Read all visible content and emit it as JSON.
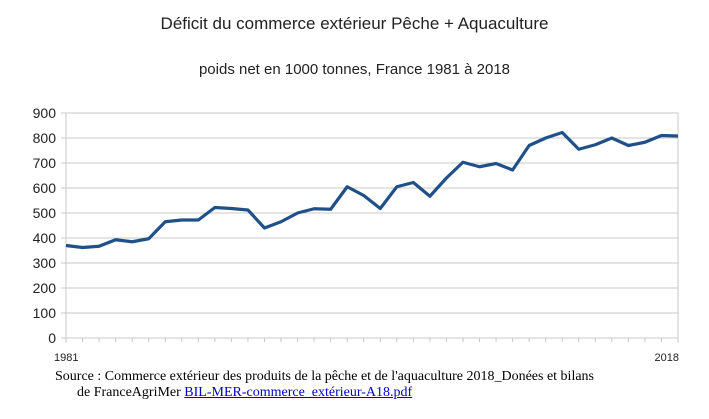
{
  "chart_data": {
    "type": "line",
    "title": "Déficit du commerce extérieur Pêche + Aquaculture",
    "subtitle": "poids net en 1000 tonnes, France 1981 à 2018",
    "x": [
      1981,
      1982,
      1983,
      1984,
      1985,
      1986,
      1987,
      1988,
      1989,
      1990,
      1991,
      1992,
      1993,
      1994,
      1995,
      1996,
      1997,
      1998,
      1999,
      2000,
      2001,
      2002,
      2003,
      2004,
      2005,
      2006,
      2007,
      2008,
      2009,
      2010,
      2011,
      2012,
      2013,
      2014,
      2015,
      2016,
      2017,
      2018
    ],
    "values": [
      370,
      362,
      367,
      393,
      385,
      397,
      465,
      472,
      472,
      522,
      518,
      512,
      440,
      465,
      500,
      517,
      515,
      605,
      570,
      518,
      605,
      622,
      567,
      640,
      703,
      685,
      698,
      672,
      770,
      800,
      822,
      755,
      773,
      800,
      770,
      783,
      810,
      808
    ],
    "x_tick_labels": [
      "1981",
      "2018"
    ],
    "ylim": [
      0,
      900
    ],
    "yticks": [
      0,
      100,
      200,
      300,
      400,
      500,
      600,
      700,
      800,
      900
    ],
    "grid": true,
    "line_color": "#1f5088"
  },
  "source": {
    "text1": "Source : Commerce extérieur des produits de la pêche et de l'aquaculture 2018_Donées et bilans",
    "text2": "de FranceAgriMer ",
    "link": "BIL-MER-commerce_extérieur-A18.pdf"
  }
}
